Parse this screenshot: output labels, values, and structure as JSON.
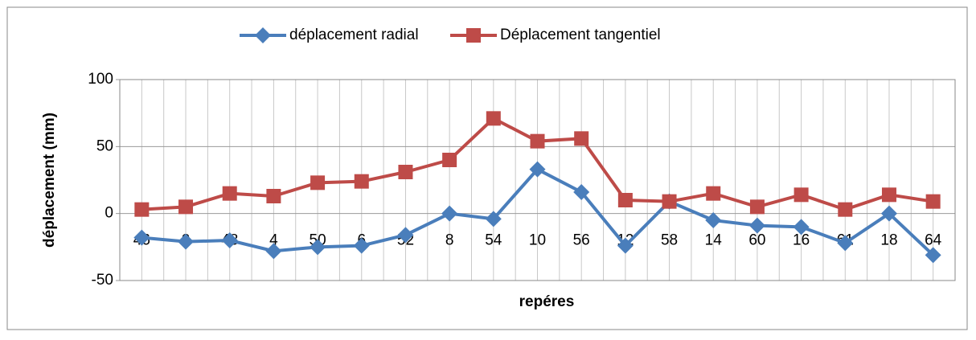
{
  "chart_data": {
    "type": "line",
    "xlabel": "repéres",
    "ylabel": "déplacement (mm)",
    "categories": [
      "46",
      "2",
      "48",
      "4",
      "50",
      "6",
      "52",
      "8",
      "54",
      "10",
      "56",
      "12",
      "58",
      "14",
      "60",
      "16",
      "61",
      "18",
      "64"
    ],
    "series": [
      {
        "name": "déplacement radial",
        "color": "#4a7ebb",
        "marker": "diamond",
        "values": [
          -18,
          -21,
          -20,
          -28,
          -25,
          -24,
          -16,
          0,
          -4,
          33,
          16,
          -24,
          9,
          -5,
          -9,
          -10,
          -22,
          0,
          -31
        ]
      },
      {
        "name": "Déplacement tangentiel",
        "color": "#be4b48",
        "marker": "square",
        "values": [
          3,
          5,
          15,
          13,
          23,
          24,
          31,
          40,
          71,
          54,
          56,
          10,
          9,
          15,
          5,
          14,
          3,
          14,
          9
        ]
      }
    ],
    "ylim": [
      -50,
      100
    ],
    "yticks": [
      -50,
      0,
      50,
      100
    ],
    "grid": true,
    "legend": "top"
  }
}
